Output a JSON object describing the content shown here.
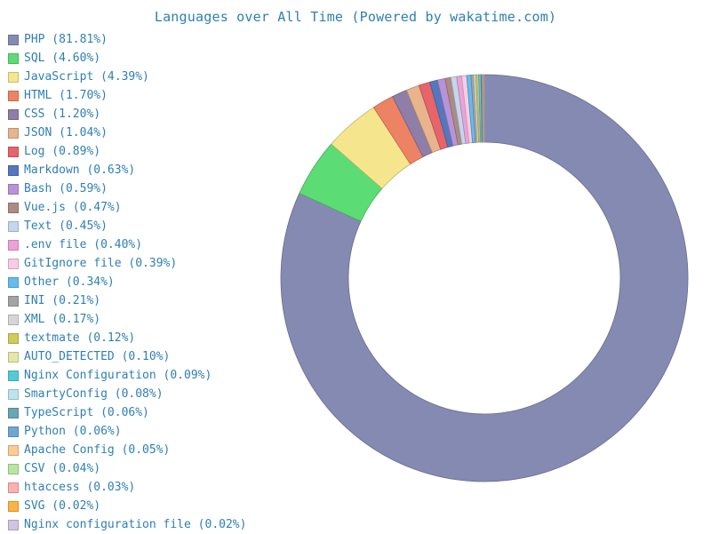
{
  "chart_data": {
    "type": "pie",
    "variant": "donut",
    "title": "Languages over All Time (Powered by wakatime.com)",
    "slices": [
      {
        "label": "PHP",
        "value": 81.81,
        "legend": "PHP (81.81%)",
        "color": "#858ab3"
      },
      {
        "label": "SQL",
        "value": 4.6,
        "legend": "SQL (4.60%)",
        "color": "#5cdc74"
      },
      {
        "label": "JavaScript",
        "value": 4.39,
        "legend": "JavaScript (4.39%)",
        "color": "#f5e68e"
      },
      {
        "label": "HTML",
        "value": 1.7,
        "legend": "HTML (1.70%)",
        "color": "#ee8264"
      },
      {
        "label": "CSS",
        "value": 1.2,
        "legend": "CSS (1.20%)",
        "color": "#8e7ea8"
      },
      {
        "label": "JSON",
        "value": 1.04,
        "legend": "JSON (1.04%)",
        "color": "#e8b48c"
      },
      {
        "label": "Log",
        "value": 0.89,
        "legend": "Log (0.89%)",
        "color": "#e6646a"
      },
      {
        "label": "Markdown",
        "value": 0.63,
        "legend": "Markdown (0.63%)",
        "color": "#5478bd"
      },
      {
        "label": "Bash",
        "value": 0.59,
        "legend": "Bash (0.59%)",
        "color": "#b893d8"
      },
      {
        "label": "Vue.js",
        "value": 0.47,
        "legend": "Vue.js (0.47%)",
        "color": "#ac8b82"
      },
      {
        "label": "Text",
        "value": 0.45,
        "legend": "Text (0.45%)",
        "color": "#c3d7ee"
      },
      {
        "label": ".env file",
        "value": 0.4,
        "legend": ".env file (0.40%)",
        "color": "#eca2d8"
      },
      {
        "label": "GitIgnore file",
        "value": 0.39,
        "legend": "GitIgnore file (0.39%)",
        "color": "#f8cce3"
      },
      {
        "label": "Other",
        "value": 0.34,
        "legend": "Other (0.34%)",
        "color": "#62bcef"
      },
      {
        "label": "INI",
        "value": 0.21,
        "legend": "INI (0.21%)",
        "color": "#a4a4a4"
      },
      {
        "label": "XML",
        "value": 0.17,
        "legend": "XML (0.17%)",
        "color": "#d6d6d6"
      },
      {
        "label": "textmate",
        "value": 0.12,
        "legend": "textmate (0.12%)",
        "color": "#cdcd5a"
      },
      {
        "label": "AUTO_DETECTED",
        "value": 0.1,
        "legend": "AUTO_DETECTED (0.10%)",
        "color": "#e6e6a8"
      },
      {
        "label": "Nginx Configuration",
        "value": 0.09,
        "legend": "Nginx Configuration (0.09%)",
        "color": "#52cbd8"
      },
      {
        "label": "SmartyConfig",
        "value": 0.08,
        "legend": "SmartyConfig (0.08%)",
        "color": "#bce4ef"
      },
      {
        "label": "TypeScript",
        "value": 0.06,
        "legend": "TypeScript (0.06%)",
        "color": "#68a6b4"
      },
      {
        "label": "Python",
        "value": 0.06,
        "legend": "Python (0.06%)",
        "color": "#6ea7d2"
      },
      {
        "label": "Apache Config",
        "value": 0.05,
        "legend": "Apache Config (0.05%)",
        "color": "#fdcb91"
      },
      {
        "label": "CSV",
        "value": 0.04,
        "legend": "CSV (0.04%)",
        "color": "#b7e6a1"
      },
      {
        "label": "htaccess",
        "value": 0.03,
        "legend": "htaccess (0.03%)",
        "color": "#fcb0b0"
      },
      {
        "label": "SVG",
        "value": 0.02,
        "legend": "SVG (0.02%)",
        "color": "#fdb344"
      },
      {
        "label": "Nginx configuration file",
        "value": 0.02,
        "legend": "Nginx configuration file (0.02%)",
        "color": "#d2c2e3"
      }
    ]
  }
}
